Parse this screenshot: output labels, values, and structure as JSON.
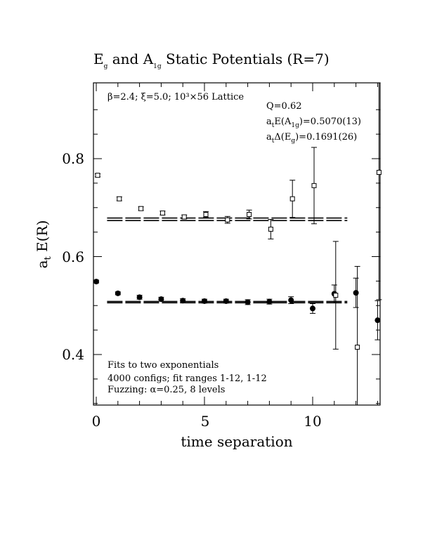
{
  "chart_data": {
    "type": "scatter",
    "title": {
      "prefix": "E",
      "prefix_sub": "g",
      "middle": " and A",
      "middle_sub": "1g",
      "suffix": " Static Potentials (R=7)"
    },
    "xlabel": "time separation",
    "ylabel": {
      "prefix": "a",
      "sub": "t",
      "suffix": " E(R)"
    },
    "xlim": [
      0,
      13
    ],
    "ylim": [
      0.29,
      0.945
    ],
    "x_ticks": [
      {
        "value": 0,
        "label": "0"
      },
      {
        "value": 5,
        "label": "5"
      },
      {
        "value": 10,
        "label": "10"
      }
    ],
    "y_ticks": [
      {
        "value": 0.4,
        "label": "0.4"
      },
      {
        "value": 0.6,
        "label": "0.6"
      },
      {
        "value": 0.8,
        "label": "0.8"
      }
    ],
    "annotations": {
      "lattice": "β=2.4; ξ=5.0; 10³×56 Lattice",
      "q": "Q=0.62",
      "a1g_fit": {
        "prefix": "a",
        "sub1": "t",
        "mid": "E(A",
        "sub2": "1g",
        "suffix": ")=0.5070(13)"
      },
      "eg_fit": {
        "prefix": "a",
        "sub1": "t",
        "mid": "Δ(E",
        "sub2": "g",
        "suffix": ")=0.1691(26)"
      },
      "fits": "Fits to two exponentials",
      "configs": "4000 configs; fit ranges 1-12, 1-12",
      "fuzzing": "Fuzzing: α=0.25, 8 levels"
    },
    "fit_lines": [
      {
        "series": "A1g",
        "y": 0.507,
        "err": 0.0013,
        "x_range": [
          0.5,
          11.6
        ]
      },
      {
        "series": "Eg",
        "y": 0.6761,
        "err": 0.0026,
        "x_range": [
          0.5,
          11.6
        ]
      }
    ],
    "series": [
      {
        "name": "A1g",
        "marker": "filled-circle",
        "points": [
          {
            "x": 0,
            "y": 0.549,
            "err": 0.003
          },
          {
            "x": 1,
            "y": 0.525,
            "err": 0.003
          },
          {
            "x": 2,
            "y": 0.517,
            "err": 0.004
          },
          {
            "x": 3,
            "y": 0.513,
            "err": 0.004
          },
          {
            "x": 4,
            "y": 0.51,
            "err": 0.004
          },
          {
            "x": 5,
            "y": 0.509,
            "err": 0.004
          },
          {
            "x": 6,
            "y": 0.509,
            "err": 0.004
          },
          {
            "x": 7,
            "y": 0.507,
            "err": 0.005
          },
          {
            "x": 8,
            "y": 0.508,
            "err": 0.005
          },
          {
            "x": 9,
            "y": 0.511,
            "err": 0.007
          },
          {
            "x": 10,
            "y": 0.494,
            "err": 0.01
          },
          {
            "x": 11,
            "y": 0.524,
            "err": 0.018
          },
          {
            "x": 12,
            "y": 0.526,
            "err": 0.03
          },
          {
            "x": 13,
            "y": 0.47,
            "err": 0.04
          }
        ]
      },
      {
        "name": "Eg",
        "marker": "open-square",
        "points": [
          {
            "x": 0,
            "y": 0.766,
            "err": 0.003
          },
          {
            "x": 1,
            "y": 0.718,
            "err": 0.004
          },
          {
            "x": 2,
            "y": 0.698,
            "err": 0.004
          },
          {
            "x": 3,
            "y": 0.689,
            "err": 0.004
          },
          {
            "x": 4,
            "y": 0.681,
            "err": 0.004
          },
          {
            "x": 5,
            "y": 0.686,
            "err": 0.006
          },
          {
            "x": 6,
            "y": 0.675,
            "err": 0.007
          },
          {
            "x": 7,
            "y": 0.686,
            "err": 0.009
          },
          {
            "x": 8,
            "y": 0.656,
            "err": 0.02
          },
          {
            "x": 9,
            "y": 0.718,
            "err": 0.038
          },
          {
            "x": 10,
            "y": 0.745,
            "err": 0.078
          },
          {
            "x": 11,
            "y": 0.521,
            "err": 0.11
          },
          {
            "x": 12,
            "y": 0.415,
            "err": 0.165
          },
          {
            "x": 13,
            "y": 0.772,
            "err": 0.26
          }
        ]
      }
    ]
  }
}
